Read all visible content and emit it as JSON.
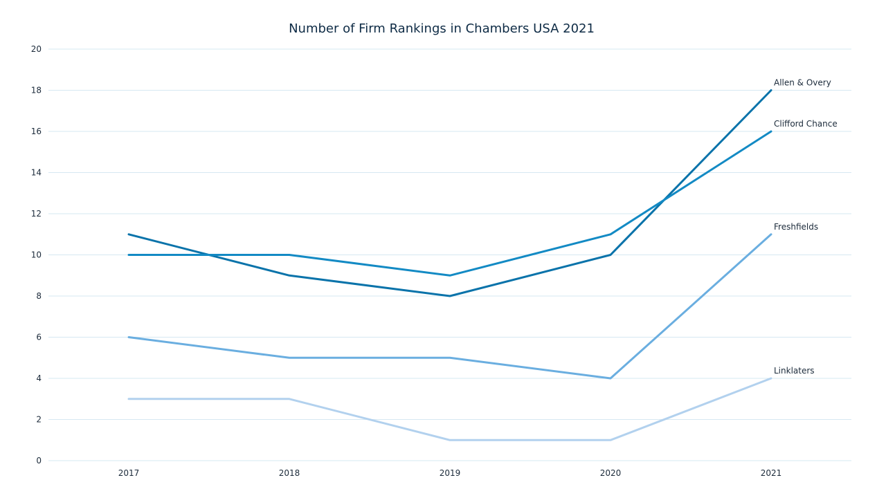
{
  "chart_data": {
    "type": "line",
    "title": "Number of Firm Rankings in Chambers USA 2021",
    "xlabel": "",
    "ylabel": "",
    "categories": [
      "2017",
      "2018",
      "2019",
      "2020",
      "2021"
    ],
    "ylim": [
      0,
      20
    ],
    "yticks": [
      0,
      2,
      4,
      6,
      8,
      10,
      12,
      14,
      16,
      18,
      20
    ],
    "grid": true,
    "legend": "labels at line ends",
    "series": [
      {
        "name": "Allen & Overy",
        "values": [
          11,
          9,
          8,
          10,
          18
        ],
        "color": "#0a73aa"
      },
      {
        "name": "Clifford Chance",
        "values": [
          10,
          10,
          9,
          11,
          16
        ],
        "color": "#138ac4"
      },
      {
        "name": "Freshfields",
        "values": [
          6,
          5,
          5,
          4,
          11
        ],
        "color": "#6aaee0"
      },
      {
        "name": "Linklaters",
        "values": [
          3,
          3,
          1,
          1,
          4
        ],
        "color": "#b2d1ee"
      }
    ]
  }
}
